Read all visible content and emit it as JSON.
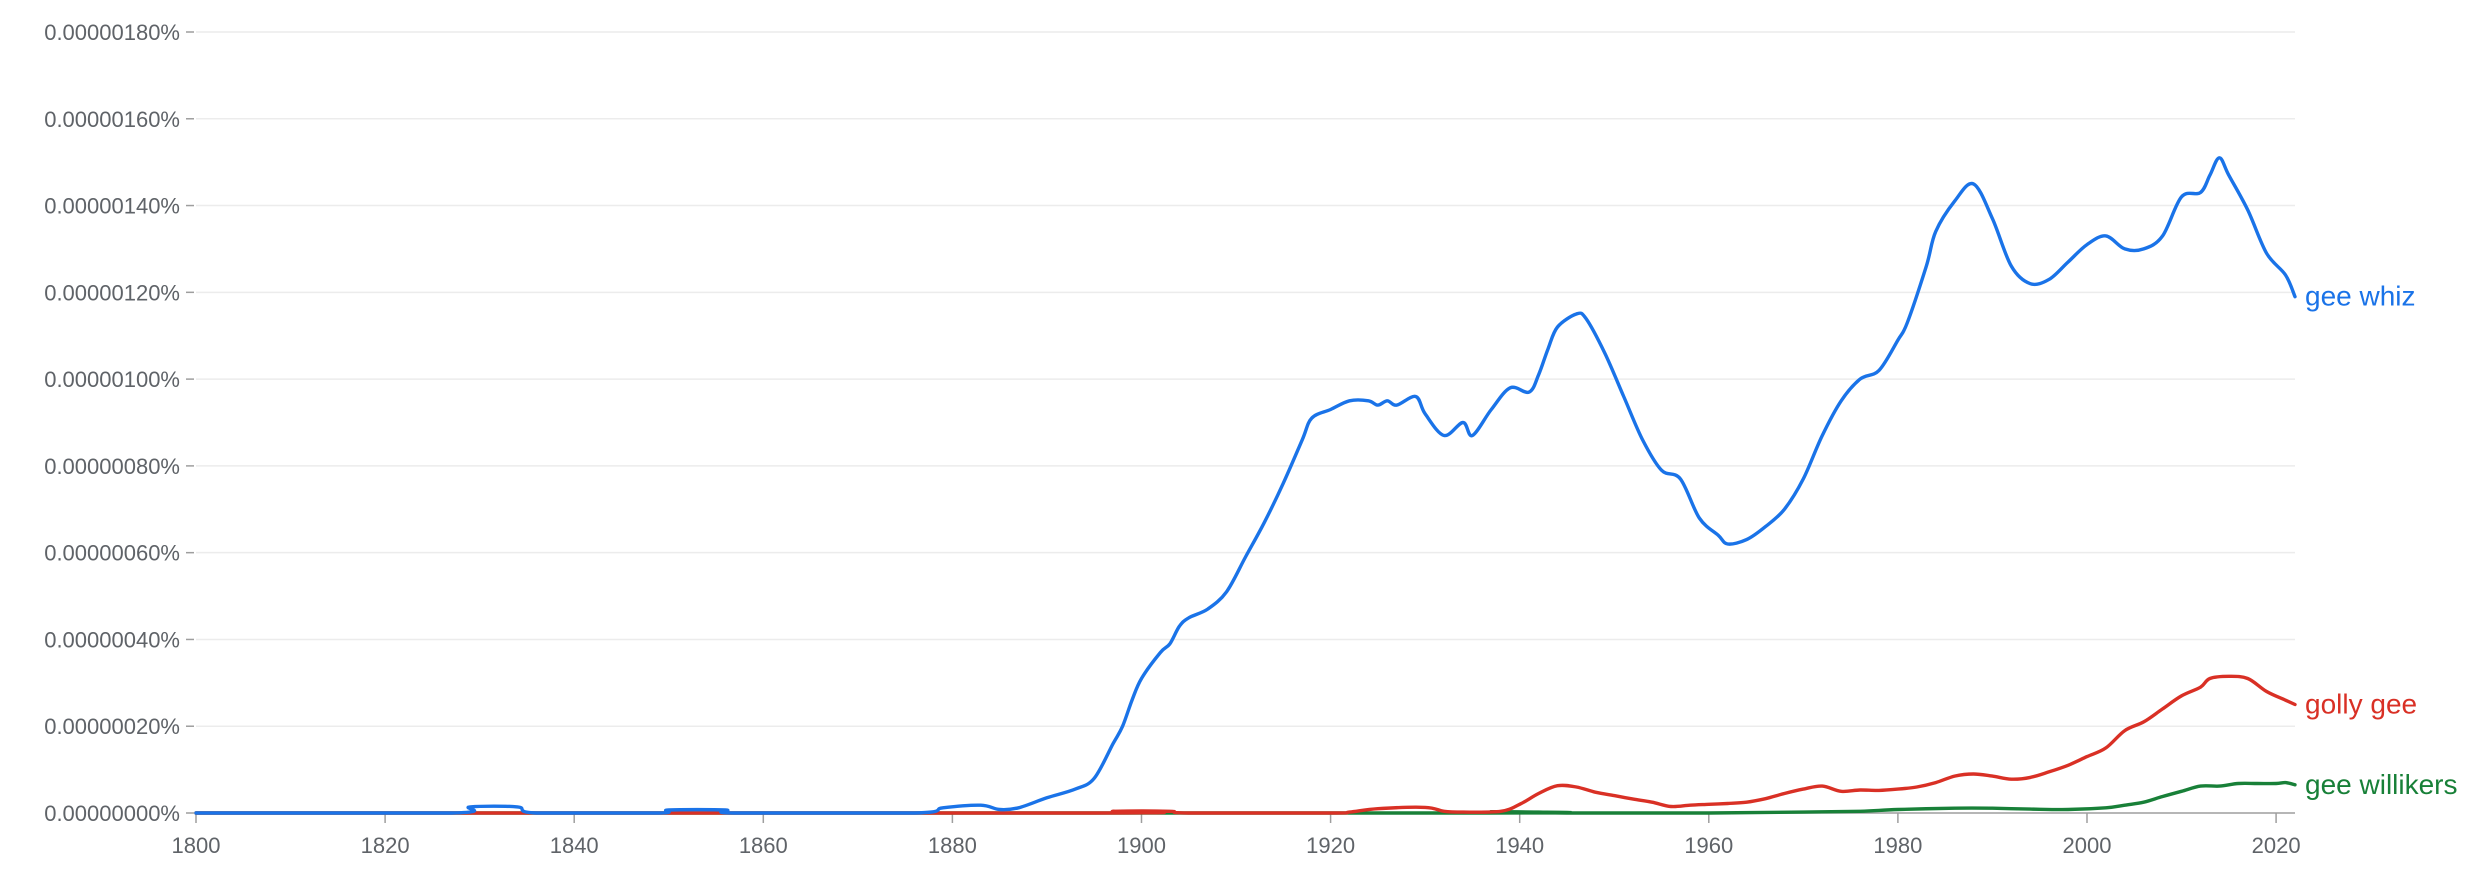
{
  "chart_data": {
    "type": "line",
    "title": "",
    "xlabel": "",
    "ylabel": "",
    "xlim": [
      1800,
      2022
    ],
    "ylim": [
      0,
      1.8e-06
    ],
    "grid": true,
    "legend": "right-end-labels",
    "x_ticks": [
      1800,
      1820,
      1840,
      1860,
      1880,
      1900,
      1920,
      1940,
      1960,
      1980,
      2000,
      2020
    ],
    "x_tick_labels": [
      "1800",
      "1820",
      "1840",
      "1860",
      "1880",
      "1900",
      "1920",
      "1940",
      "1960",
      "1980",
      "2000",
      "2020"
    ],
    "y_ticks": [
      0,
      2e-07,
      4e-07,
      6e-07,
      8e-07,
      1e-06,
      1.2e-06,
      1.4e-06,
      1.6e-06,
      1.8e-06
    ],
    "y_tick_labels": [
      "0.00000000%",
      "0.00000020%",
      "0.00000040%",
      "0.00000060%",
      "0.00000080%",
      "0.00000100%",
      "0.00000120%",
      "0.00000140%",
      "0.00000160%",
      "0.00000180%"
    ],
    "series": [
      {
        "name": "gee whiz",
        "color": "#1a73e8",
        "points": [
          [
            1800,
            0
          ],
          [
            1827,
            0
          ],
          [
            1829,
            1.4e-08
          ],
          [
            1834,
            1.4e-08
          ],
          [
            1836,
            0
          ],
          [
            1849,
            0
          ],
          [
            1850,
            7e-09
          ],
          [
            1856,
            7e-09
          ],
          [
            1857,
            0
          ],
          [
            1876,
            0
          ],
          [
            1879,
            1.2e-08
          ],
          [
            1883,
            1.8e-08
          ],
          [
            1885,
            8e-09
          ],
          [
            1887,
            1.2e-08
          ],
          [
            1890,
            3.5e-08
          ],
          [
            1893,
            5.5e-08
          ],
          [
            1895,
            8e-08
          ],
          [
            1897,
            1.6e-07
          ],
          [
            1898,
            2e-07
          ],
          [
            1899,
            2.6e-07
          ],
          [
            1900,
            3.1e-07
          ],
          [
            1902,
            3.7e-07
          ],
          [
            1903,
            3.9e-07
          ],
          [
            1904,
            4.3e-07
          ],
          [
            1905,
            4.5e-07
          ],
          [
            1907,
            4.7e-07
          ],
          [
            1909,
            5.1e-07
          ],
          [
            1911,
            5.9e-07
          ],
          [
            1913,
            6.7e-07
          ],
          [
            1915,
            7.6e-07
          ],
          [
            1917,
            8.6e-07
          ],
          [
            1918,
            9.1e-07
          ],
          [
            1920,
            9.3e-07
          ],
          [
            1922,
            9.5e-07
          ],
          [
            1924,
            9.5e-07
          ],
          [
            1925,
            9.4e-07
          ],
          [
            1926,
            9.5e-07
          ],
          [
            1927,
            9.4e-07
          ],
          [
            1929,
            9.6e-07
          ],
          [
            1930,
            9.2e-07
          ],
          [
            1932,
            8.7e-07
          ],
          [
            1934,
            9e-07
          ],
          [
            1935,
            8.7e-07
          ],
          [
            1937,
            9.3e-07
          ],
          [
            1939,
            9.8e-07
          ],
          [
            1941,
            9.7e-07
          ],
          [
            1942,
            1.01e-06
          ],
          [
            1943,
            1.07e-06
          ],
          [
            1944,
            1.12e-06
          ],
          [
            1946,
            1.15e-06
          ],
          [
            1947,
            1.14e-06
          ],
          [
            1949,
            1.06e-06
          ],
          [
            1951,
            9.6e-07
          ],
          [
            1953,
            8.6e-07
          ],
          [
            1955,
            7.9e-07
          ],
          [
            1957,
            7.7e-07
          ],
          [
            1959,
            6.8e-07
          ],
          [
            1961,
            6.4e-07
          ],
          [
            1962,
            6.2e-07
          ],
          [
            1964,
            6.3e-07
          ],
          [
            1966,
            6.6e-07
          ],
          [
            1968,
            7e-07
          ],
          [
            1970,
            7.7e-07
          ],
          [
            1972,
            8.7e-07
          ],
          [
            1974,
            9.5e-07
          ],
          [
            1976,
            1e-06
          ],
          [
            1978,
            1.02e-06
          ],
          [
            1980,
            1.09e-06
          ],
          [
            1981,
            1.13e-06
          ],
          [
            1983,
            1.26e-06
          ],
          [
            1984,
            1.34e-06
          ],
          [
            1986,
            1.41e-06
          ],
          [
            1988,
            1.45e-06
          ],
          [
            1990,
            1.37e-06
          ],
          [
            1992,
            1.26e-06
          ],
          [
            1994,
            1.22e-06
          ],
          [
            1996,
            1.23e-06
          ],
          [
            1998,
            1.27e-06
          ],
          [
            2000,
            1.31e-06
          ],
          [
            2002,
            1.33e-06
          ],
          [
            2004,
            1.3e-06
          ],
          [
            2006,
            1.3e-06
          ],
          [
            2008,
            1.33e-06
          ],
          [
            2010,
            1.42e-06
          ],
          [
            2012,
            1.43e-06
          ],
          [
            2013,
            1.47e-06
          ],
          [
            2014,
            1.51e-06
          ],
          [
            2015,
            1.47e-06
          ],
          [
            2017,
            1.39e-06
          ],
          [
            2019,
            1.29e-06
          ],
          [
            2021,
            1.24e-06
          ],
          [
            2022,
            1.19e-06
          ]
        ]
      },
      {
        "name": "golly gee",
        "color": "#d93025",
        "points": [
          [
            1800,
            0
          ],
          [
            1895,
            0
          ],
          [
            1897,
            4e-09
          ],
          [
            1903,
            4e-09
          ],
          [
            1905,
            0
          ],
          [
            1920,
            0
          ],
          [
            1922,
            2e-09
          ],
          [
            1925,
            1e-08
          ],
          [
            1930,
            1.3e-08
          ],
          [
            1932,
            4e-09
          ],
          [
            1934,
            2e-09
          ],
          [
            1938,
            4e-09
          ],
          [
            1940,
            2e-08
          ],
          [
            1942,
            4.5e-08
          ],
          [
            1944,
            6.3e-08
          ],
          [
            1946,
            6e-08
          ],
          [
            1948,
            4.8e-08
          ],
          [
            1950,
            4e-08
          ],
          [
            1952,
            3.2e-08
          ],
          [
            1954,
            2.5e-08
          ],
          [
            1956,
            1.5e-08
          ],
          [
            1958,
            1.8e-08
          ],
          [
            1960,
            2e-08
          ],
          [
            1962,
            2.2e-08
          ],
          [
            1964,
            2.5e-08
          ],
          [
            1966,
            3.3e-08
          ],
          [
            1968,
            4.5e-08
          ],
          [
            1970,
            5.5e-08
          ],
          [
            1972,
            6.2e-08
          ],
          [
            1974,
            5e-08
          ],
          [
            1976,
            5.3e-08
          ],
          [
            1978,
            5.2e-08
          ],
          [
            1980,
            5.5e-08
          ],
          [
            1982,
            6e-08
          ],
          [
            1984,
            7e-08
          ],
          [
            1986,
            8.5e-08
          ],
          [
            1988,
            9e-08
          ],
          [
            1990,
            8.5e-08
          ],
          [
            1992,
            7.8e-08
          ],
          [
            1994,
            8.2e-08
          ],
          [
            1996,
            9.5e-08
          ],
          [
            1998,
            1.1e-07
          ],
          [
            2000,
            1.3e-07
          ],
          [
            2002,
            1.5e-07
          ],
          [
            2004,
            1.9e-07
          ],
          [
            2006,
            2.1e-07
          ],
          [
            2008,
            2.4e-07
          ],
          [
            2010,
            2.7e-07
          ],
          [
            2012,
            2.9e-07
          ],
          [
            2013,
            3.1e-07
          ],
          [
            2015,
            3.15e-07
          ],
          [
            2017,
            3.1e-07
          ],
          [
            2019,
            2.8e-07
          ],
          [
            2021,
            2.6e-07
          ],
          [
            2022,
            2.5e-07
          ]
        ]
      },
      {
        "name": "gee willikers",
        "color": "#188038",
        "points": [
          [
            1800,
            0
          ],
          [
            1935,
            0
          ],
          [
            1937,
            3e-09
          ],
          [
            1942,
            2e-09
          ],
          [
            1945,
            0
          ],
          [
            1960,
            0
          ],
          [
            1970,
            2e-09
          ],
          [
            1976,
            4e-09
          ],
          [
            1980,
            8e-09
          ],
          [
            1986,
            1.1e-08
          ],
          [
            1990,
            1.1e-08
          ],
          [
            1994,
            9e-09
          ],
          [
            1998,
            8e-09
          ],
          [
            2002,
            1.2e-08
          ],
          [
            2004,
            1.8e-08
          ],
          [
            2006,
            2.5e-08
          ],
          [
            2008,
            3.8e-08
          ],
          [
            2010,
            5e-08
          ],
          [
            2012,
            6.2e-08
          ],
          [
            2014,
            6.2e-08
          ],
          [
            2016,
            6.8e-08
          ],
          [
            2018,
            6.8e-08
          ],
          [
            2020,
            6.8e-08
          ],
          [
            2021,
            7e-08
          ],
          [
            2022,
            6.5e-08
          ]
        ]
      }
    ]
  }
}
